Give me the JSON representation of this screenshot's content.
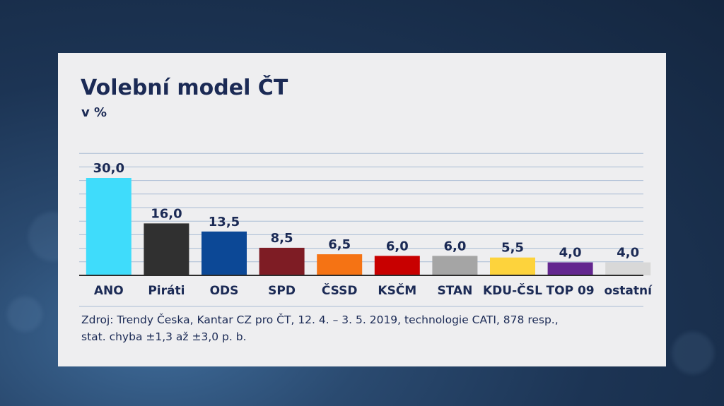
{
  "chart_data": {
    "type": "bar",
    "title": "Volební model ČT",
    "subtitle": "v %",
    "categories": [
      "ANO",
      "Piráti",
      "ODS",
      "SPD",
      "ČSSD",
      "KSČM",
      "STAN",
      "KDU-ČSL",
      "TOP 09",
      "ostatní"
    ],
    "values": [
      30.0,
      16.0,
      13.5,
      8.5,
      6.5,
      6.0,
      6.0,
      5.5,
      4.0,
      4.0
    ],
    "value_labels": [
      "30,0",
      "16,0",
      "13,5",
      "8,5",
      "6,5",
      "6,0",
      "6,0",
      "5,5",
      "4,0",
      "4,0"
    ],
    "colors": [
      "#3fdcfb",
      "#303030",
      "#0c4896",
      "#7e1c24",
      "#f57314",
      "#c80000",
      "#a5a5a5",
      "#fdd33c",
      "#63268f",
      "#d8d8d8"
    ],
    "ylim": [
      0,
      38
    ],
    "grid": true,
    "xlabel": "",
    "ylabel": "",
    "source_lines": [
      "Zdroj: Trendy Česka, Kantar CZ pro ČT,  12. 4. – 3. 5. 2019, technologie CATI, 878 resp.,",
      "stat. chyba ±1,3 až ±3,0 p. b."
    ]
  },
  "theme": {
    "text_color": "#1b2a55",
    "grid_color": "#a9bcd4"
  }
}
